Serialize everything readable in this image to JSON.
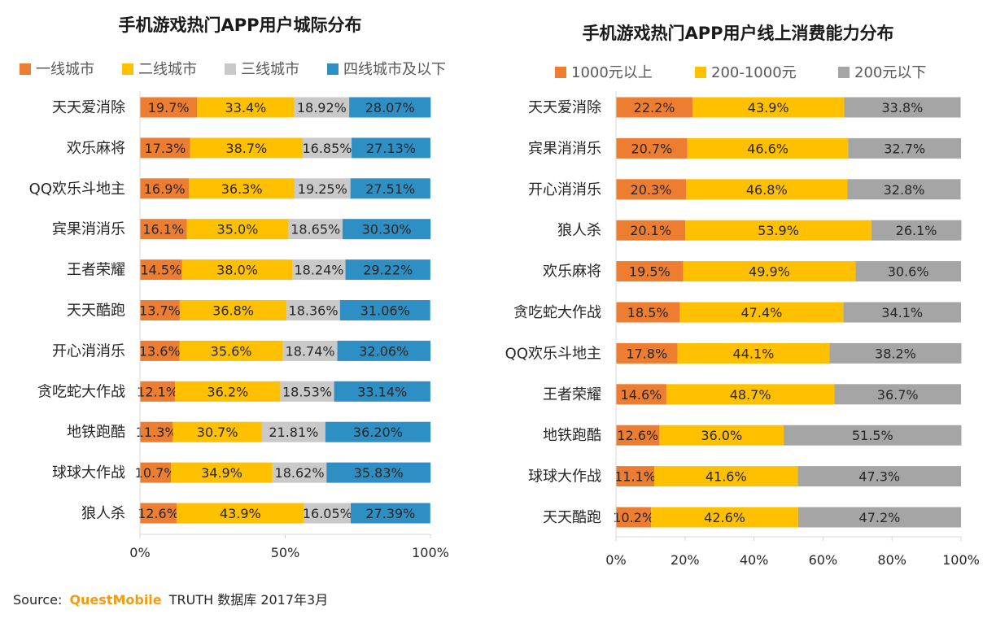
{
  "colors": {
    "orange": "#ED7D31",
    "yellow": "#FFC000",
    "lightgray": "#C9C9C9",
    "gray": "#A5A5A5",
    "blue": "#2E8FC4",
    "brand": "#F39C12"
  },
  "chart_data": [
    {
      "type": "bar",
      "orientation": "horizontal",
      "stacked": true,
      "percent_stacked": true,
      "title": "手机游戏热门APP用户城际分布",
      "legend_position": "top",
      "grid": false,
      "xlim": [
        0,
        100
      ],
      "x_ticks": [
        "0%",
        "50%",
        "100%"
      ],
      "categories": [
        "天天爱消除",
        "欢乐麻将",
        "QQ欢乐斗地主",
        "宾果消消乐",
        "王者荣耀",
        "天天酷跑",
        "开心消消乐",
        "贪吃蛇大作战",
        "地铁跑酷",
        "球球大作战",
        "狼人杀"
      ],
      "series": [
        {
          "name": "一线城市",
          "color": "orange",
          "values": [
            19.7,
            17.3,
            16.9,
            16.1,
            14.5,
            13.7,
            13.6,
            12.1,
            11.3,
            10.7,
            12.6
          ],
          "labels": [
            "19.7%",
            "17.3%",
            "16.9%",
            "16.1%",
            "14.5%",
            "13.7%",
            "13.6%",
            "12.1%",
            "11.3%",
            "10.7%",
            "12.6%"
          ]
        },
        {
          "name": "二线城市",
          "color": "yellow",
          "values": [
            33.4,
            38.7,
            36.3,
            35.0,
            38.0,
            36.8,
            35.6,
            36.2,
            30.7,
            34.9,
            43.9
          ],
          "labels": [
            "33.4%",
            "38.7%",
            "36.3%",
            "35.0%",
            "38.0%",
            "36.8%",
            "35.6%",
            "36.2%",
            "30.7%",
            "34.9%",
            "43.9%"
          ]
        },
        {
          "name": "三线城市",
          "color": "lightgray",
          "values": [
            18.92,
            16.85,
            19.25,
            18.65,
            18.24,
            18.36,
            18.74,
            18.53,
            21.81,
            18.62,
            16.05
          ],
          "labels": [
            "18.92%",
            "16.85%",
            "19.25%",
            "18.65%",
            "18.24%",
            "18.36%",
            "18.74%",
            "18.53%",
            "21.81%",
            "18.62%",
            "16.05%"
          ]
        },
        {
          "name": "四线城市及以下",
          "color": "blue",
          "values": [
            28.07,
            27.13,
            27.51,
            30.3,
            29.22,
            31.06,
            32.06,
            33.14,
            36.2,
            35.83,
            27.39
          ],
          "labels": [
            "28.07%",
            "27.13%",
            "27.51%",
            "30.30%",
            "29.22%",
            "31.06%",
            "32.06%",
            "33.14%",
            "36.20%",
            "35.83%",
            "27.39%"
          ]
        }
      ]
    },
    {
      "type": "bar",
      "orientation": "horizontal",
      "stacked": true,
      "percent_stacked": true,
      "title": "手机游戏热门APP用户线上消费能力分布",
      "legend_position": "top",
      "grid": false,
      "xlim": [
        0,
        100
      ],
      "x_ticks": [
        "0%",
        "20%",
        "40%",
        "60%",
        "80%",
        "100%"
      ],
      "categories": [
        "天天爱消除",
        "宾果消消乐",
        "开心消消乐",
        "狼人杀",
        "欢乐麻将",
        "贪吃蛇大作战",
        "QQ欢乐斗地主",
        "王者荣耀",
        "地铁跑酷",
        "球球大作战",
        "天天酷跑"
      ],
      "series": [
        {
          "name": "1000元以上",
          "color": "orange",
          "values": [
            22.2,
            20.7,
            20.3,
            20.1,
            19.5,
            18.5,
            17.8,
            14.6,
            12.6,
            11.1,
            10.2
          ],
          "labels": [
            "22.2%",
            "20.7%",
            "20.3%",
            "20.1%",
            "19.5%",
            "18.5%",
            "17.8%",
            "14.6%",
            "12.6%",
            "11.1%",
            "10.2%"
          ]
        },
        {
          "name": "200-1000元",
          "color": "yellow",
          "values": [
            43.9,
            46.6,
            46.8,
            53.9,
            49.9,
            47.4,
            44.1,
            48.7,
            36.0,
            41.6,
            42.6
          ],
          "labels": [
            "43.9%",
            "46.6%",
            "46.8%",
            "53.9%",
            "49.9%",
            "47.4%",
            "44.1%",
            "48.7%",
            "36.0%",
            "41.6%",
            "42.6%"
          ]
        },
        {
          "name": "200元以下",
          "color": "gray",
          "values": [
            33.8,
            32.7,
            32.8,
            26.1,
            30.6,
            34.1,
            38.2,
            36.7,
            51.5,
            47.3,
            47.2
          ],
          "labels": [
            "33.8%",
            "32.7%",
            "32.8%",
            "26.1%",
            "30.6%",
            "34.1%",
            "38.2%",
            "36.7%",
            "51.5%",
            "47.3%",
            "47.2%"
          ]
        }
      ]
    }
  ],
  "source": {
    "prefix": "Source:",
    "brand": "QuestMobile",
    "suffix": "TRUTH 数据库 2017年3月"
  }
}
